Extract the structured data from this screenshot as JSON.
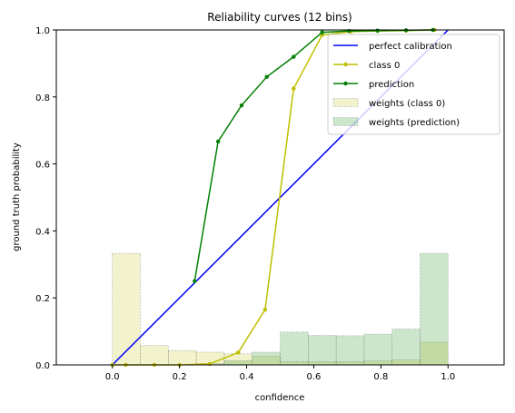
{
  "chart_data": {
    "type": "line",
    "title": "Reliability curves (12 bins)",
    "xlabel": "confidence",
    "ylabel": "ground truth probability",
    "xlim": [
      -0.167,
      1.167
    ],
    "ylim": [
      0,
      1
    ],
    "x_ticks": [
      "0.0",
      "0.2",
      "0.4",
      "0.6",
      "0.8",
      "1.0"
    ],
    "y_ticks": [
      "0.0",
      "0.2",
      "0.4",
      "0.6",
      "0.8",
      "1.0"
    ],
    "grid": false,
    "legend_position": "top-right",
    "series": [
      {
        "name": "perfect calibration",
        "color": "#0000ff",
        "marker": "none",
        "x": [
          0.0,
          1.0
        ],
        "y": [
          0.0,
          1.0
        ]
      },
      {
        "name": "class 0",
        "color": "#bfbf00",
        "marker": "dot",
        "x": [
          0.0,
          0.04,
          0.125,
          0.2,
          0.29,
          0.375,
          0.455,
          0.54,
          0.625,
          0.71,
          0.79,
          0.875,
          0.96
        ],
        "y": [
          0.0,
          0.0,
          0.0,
          0.0,
          0.003,
          0.037,
          0.165,
          0.825,
          0.985,
          0.995,
          0.997,
          0.998,
          1.0
        ]
      },
      {
        "name": "prediction",
        "color": "#008000",
        "marker": "dot",
        "x": [
          0.245,
          0.315,
          0.385,
          0.46,
          0.54,
          0.625,
          0.705,
          0.79,
          0.875,
          0.955
        ],
        "y": [
          0.25,
          0.667,
          0.775,
          0.86,
          0.92,
          0.993,
          0.997,
          0.998,
          0.999,
          1.0
        ]
      }
    ],
    "histograms": [
      {
        "name": "weights (class 0)",
        "color": "#bfbf00",
        "bins": [
          0.0,
          0.0833,
          0.1667,
          0.25,
          0.3333,
          0.4167,
          0.5,
          0.5833,
          0.6667,
          0.75,
          0.8333,
          0.9167,
          1.0
        ],
        "values": [
          0.333,
          0.058,
          0.043,
          0.038,
          0.033,
          0.025,
          0.01,
          0.01,
          0.01,
          0.012,
          0.015,
          0.068
        ]
      },
      {
        "name": "weights (prediction)",
        "color": "#008000",
        "bins": [
          0.0,
          0.0833,
          0.1667,
          0.25,
          0.3333,
          0.4167,
          0.5,
          0.5833,
          0.6667,
          0.75,
          0.8333,
          0.9167,
          1.0
        ],
        "values": [
          0.0,
          0.0,
          0.0,
          0.004,
          0.013,
          0.038,
          0.098,
          0.088,
          0.087,
          0.092,
          0.107,
          0.333
        ]
      }
    ]
  }
}
